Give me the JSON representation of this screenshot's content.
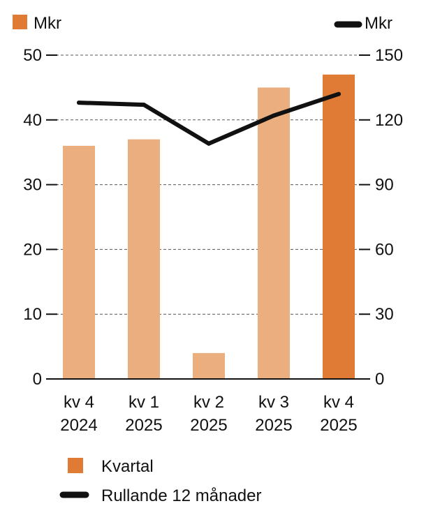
{
  "chart_data": {
    "type": "bar",
    "title": "",
    "categories": [
      [
        "kv 4",
        "2024"
      ],
      [
        "kv 1",
        "2025"
      ],
      [
        "kv 2",
        "2025"
      ],
      [
        "kv 3",
        "2025"
      ],
      [
        "kv 4",
        "2025"
      ]
    ],
    "series": [
      {
        "name": "Kvartal",
        "kind": "bar",
        "axis": "left",
        "values": [
          36,
          37,
          4,
          45,
          47
        ],
        "color": "#ebae7f",
        "highlight_color": "#e07b35",
        "highlight_index": 4
      },
      {
        "name": "Rullande 12 månader",
        "kind": "line",
        "axis": "right",
        "values": [
          128,
          127,
          109,
          122,
          132
        ],
        "color": "#111111"
      }
    ],
    "y_left": {
      "label": "Mkr",
      "range": [
        0,
        50
      ],
      "ticks": [
        "0",
        "10",
        "20",
        "30",
        "40",
        "50"
      ]
    },
    "y_right": {
      "label": "Mkr",
      "range": [
        0,
        150
      ],
      "ticks": [
        "0",
        "30",
        "60",
        "90",
        "120",
        "150"
      ]
    },
    "grid": "dashed",
    "legend": {
      "placement": "bottom-left",
      "items": [
        "Kvartal",
        "Rullande 12 månader"
      ]
    }
  }
}
